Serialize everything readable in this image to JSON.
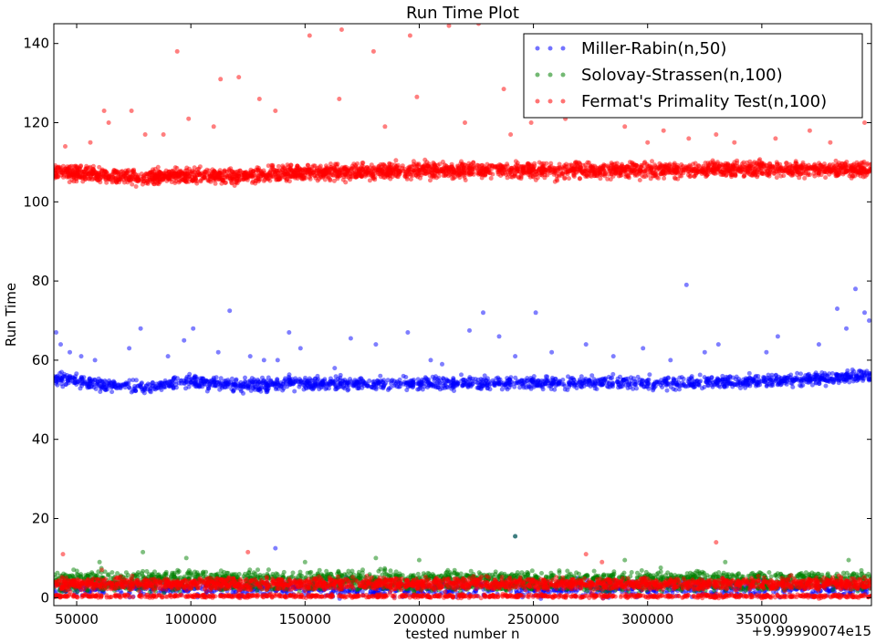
{
  "chart_data": {
    "type": "scatter",
    "title": "Run Time Plot",
    "xlabel": "tested number n",
    "ylabel": "Run Time",
    "x_offset_label": "+9.99990074e15",
    "xlim": [
      40000,
      398000
    ],
    "ylim": [
      -2,
      145
    ],
    "x_ticks": [
      50000,
      100000,
      150000,
      200000,
      250000,
      300000,
      350000
    ],
    "x_tick_labels": [
      "50000",
      "100000",
      "150000",
      "200000",
      "250000",
      "300000",
      "350000"
    ],
    "y_ticks": [
      0,
      20,
      40,
      60,
      80,
      100,
      120,
      140
    ],
    "y_tick_labels": [
      "0",
      "20",
      "40",
      "60",
      "80",
      "100",
      "120",
      "140"
    ],
    "grid": false,
    "legend_position": "top-right",
    "series": [
      {
        "name": "Miller-Rabin(n,50)",
        "color": "#0000ff",
        "bands": [
          {
            "points": [
              [
                40000,
                55.5
              ],
              [
                60000,
                53.8
              ],
              [
                80000,
                53.2
              ],
              [
                100000,
                54.5
              ],
              [
                120000,
                53.6
              ],
              [
                150000,
                54.2
              ],
              [
                200000,
                54.0
              ],
              [
                250000,
                54.3
              ],
              [
                300000,
                54.2
              ],
              [
                350000,
                54.8
              ],
              [
                398000,
                56.0
              ]
            ],
            "spread": 1.3,
            "count": 1800
          },
          {
            "points": [
              [
                40000,
                2.3
              ],
              [
                398000,
                2.3
              ]
            ],
            "spread": 1.6,
            "count": 1100
          }
        ],
        "outliers": [
          [
            41000,
            67
          ],
          [
            43000,
            64
          ],
          [
            47000,
            62
          ],
          [
            52000,
            61
          ],
          [
            58000,
            60
          ],
          [
            73000,
            63
          ],
          [
            78000,
            68
          ],
          [
            90000,
            61
          ],
          [
            97000,
            65
          ],
          [
            101000,
            68
          ],
          [
            112000,
            62
          ],
          [
            117000,
            72.5
          ],
          [
            126000,
            61
          ],
          [
            138000,
            60
          ],
          [
            143000,
            67
          ],
          [
            148000,
            63
          ],
          [
            163000,
            58
          ],
          [
            170000,
            65.5
          ],
          [
            181000,
            64
          ],
          [
            195000,
            67
          ],
          [
            205000,
            60
          ],
          [
            222000,
            67.5
          ],
          [
            228000,
            72
          ],
          [
            235000,
            66
          ],
          [
            251000,
            72
          ],
          [
            258000,
            62
          ],
          [
            273000,
            64
          ],
          [
            285000,
            61
          ],
          [
            298000,
            63
          ],
          [
            310000,
            60
          ],
          [
            317000,
            79
          ],
          [
            331000,
            64
          ],
          [
            352000,
            62
          ],
          [
            357000,
            66
          ],
          [
            375000,
            64
          ],
          [
            383000,
            73
          ],
          [
            387000,
            68
          ],
          [
            391000,
            78
          ],
          [
            395000,
            72
          ],
          [
            397000,
            70
          ],
          [
            132000,
            60
          ],
          [
            210000,
            59
          ],
          [
            242000,
            61
          ],
          [
            325000,
            62
          ],
          [
            137000,
            12.5
          ],
          [
            242000,
            15.5
          ]
        ]
      },
      {
        "name": "Solovay-Strassen(n,100)",
        "color": "#008000",
        "bands": [
          {
            "points": [
              [
                40000,
                5.0
              ],
              [
                398000,
                5.0
              ]
            ],
            "spread": 1.4,
            "count": 1400
          },
          {
            "points": [
              [
                40000,
                2.8
              ],
              [
                398000,
                2.8
              ]
            ],
            "spread": 1.0,
            "count": 600
          }
        ],
        "outliers": [
          [
            79000,
            11.5
          ],
          [
            98000,
            10
          ],
          [
            181000,
            10
          ],
          [
            200000,
            9.5
          ],
          [
            242000,
            15.5
          ],
          [
            290000,
            9.5
          ],
          [
            334000,
            9
          ],
          [
            388000,
            9.5
          ],
          [
            150000,
            9
          ],
          [
            60000,
            9
          ]
        ]
      },
      {
        "name": "Fermat's Primality Test(n,100)",
        "color": "#ff0000",
        "bands": [
          {
            "points": [
              [
                40000,
                107.5
              ],
              [
                60000,
                106.8
              ],
              [
                80000,
                106.0
              ],
              [
                100000,
                106.8
              ],
              [
                120000,
                106.5
              ],
              [
                150000,
                107.5
              ],
              [
                200000,
                108.0
              ],
              [
                250000,
                108.0
              ],
              [
                300000,
                108.0
              ],
              [
                350000,
                108.3
              ],
              [
                398000,
                108.2
              ]
            ],
            "spread": 1.6,
            "count": 3000
          },
          {
            "points": [
              [
                40000,
                3.5
              ],
              [
                398000,
                3.5
              ]
            ],
            "spread": 1.2,
            "count": 2200
          },
          {
            "points": [
              [
                40000,
                0.4
              ],
              [
                398000,
                0.4
              ]
            ],
            "spread": 0.35,
            "count": 900
          }
        ],
        "outliers": [
          [
            56000,
            115
          ],
          [
            62000,
            123
          ],
          [
            64000,
            120
          ],
          [
            74000,
            123
          ],
          [
            80000,
            117
          ],
          [
            94000,
            138
          ],
          [
            99000,
            121
          ],
          [
            113000,
            131
          ],
          [
            121000,
            131.5
          ],
          [
            130000,
            126
          ],
          [
            137000,
            123
          ],
          [
            152000,
            142
          ],
          [
            166000,
            143.5
          ],
          [
            180000,
            138
          ],
          [
            196000,
            142
          ],
          [
            199000,
            126.5
          ],
          [
            213000,
            144.5
          ],
          [
            226000,
            145
          ],
          [
            237000,
            128.5
          ],
          [
            249000,
            120
          ],
          [
            258000,
            126
          ],
          [
            264000,
            121
          ],
          [
            276000,
            124
          ],
          [
            290000,
            119
          ],
          [
            307000,
            118
          ],
          [
            318000,
            116
          ],
          [
            338000,
            115
          ],
          [
            356000,
            116
          ],
          [
            371000,
            118
          ],
          [
            395000,
            120
          ],
          [
            110000,
            119
          ],
          [
            165000,
            126
          ],
          [
            185000,
            119
          ],
          [
            220000,
            120
          ],
          [
            240000,
            117
          ],
          [
            300000,
            115
          ],
          [
            330000,
            117
          ],
          [
            380000,
            115
          ],
          [
            88000,
            117
          ],
          [
            45000,
            114
          ],
          [
            125000,
            11.5
          ],
          [
            330000,
            14
          ],
          [
            44000,
            11
          ],
          [
            273000,
            11
          ],
          [
            280000,
            9
          ],
          [
            61000,
            7
          ]
        ]
      }
    ]
  }
}
